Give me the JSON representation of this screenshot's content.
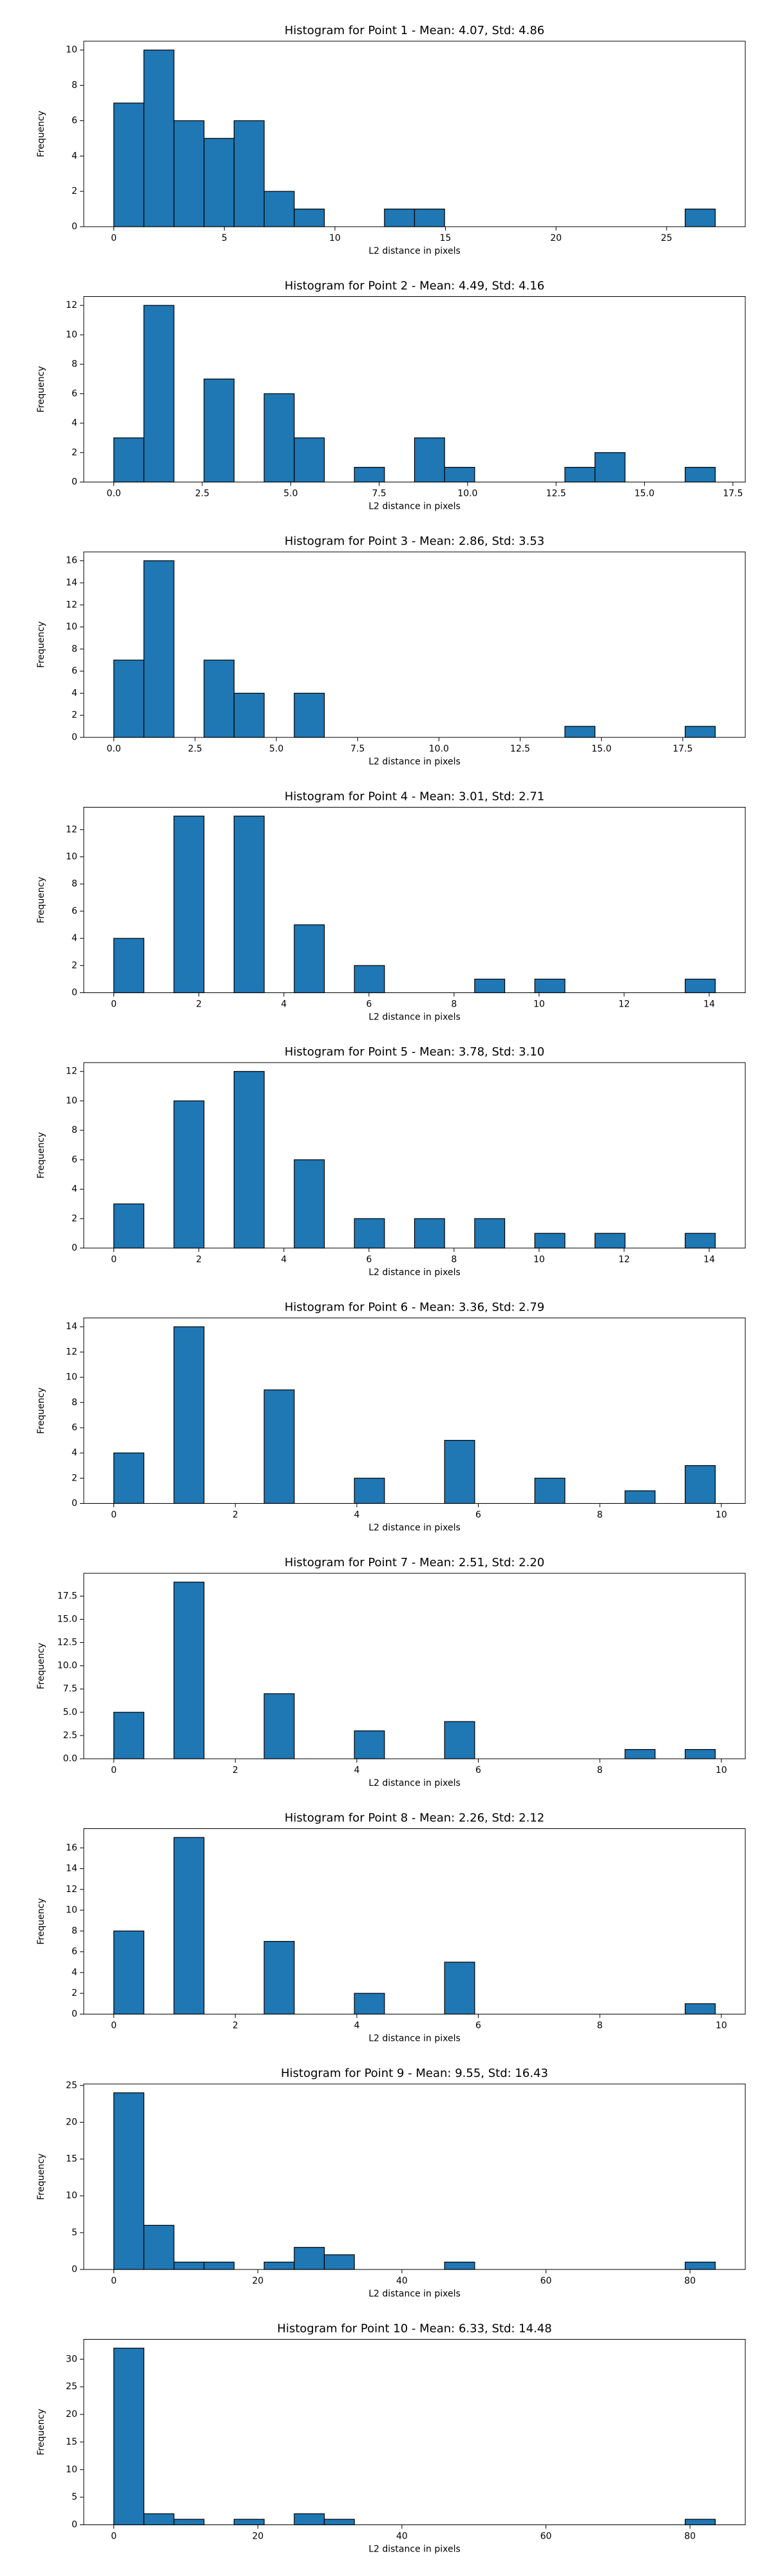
{
  "chart_data": [
    {
      "type": "histogram",
      "title": "Histogram for Point 1 - Mean: 4.07, Std: 4.86",
      "xlabel": "L2 distance in pixels",
      "ylabel": "Frequency",
      "color": "#1f77b4",
      "edgecolor": "#000000",
      "bins": [
        0,
        1.36,
        2.72,
        4.08,
        5.44,
        6.8,
        8.16,
        9.52,
        10.88,
        12.24,
        13.6,
        14.96,
        16.32,
        17.68,
        19.04,
        20.4,
        21.76,
        23.12,
        24.48,
        25.84,
        27.2
      ],
      "values": [
        7,
        10,
        6,
        5,
        6,
        2,
        1,
        0,
        0,
        1,
        1,
        0,
        0,
        0,
        0,
        0,
        0,
        0,
        0,
        1
      ],
      "xlim": [
        -1.36,
        28.56
      ],
      "ylim": [
        0,
        10.5
      ],
      "xticks": [
        0,
        5,
        10,
        15,
        20,
        25
      ],
      "yticks": [
        0,
        2,
        4,
        6,
        8,
        10
      ]
    },
    {
      "type": "histogram",
      "title": "Histogram for Point 2 - Mean: 4.49, Std: 4.16",
      "xlabel": "L2 distance in pixels",
      "ylabel": "Frequency",
      "color": "#1f77b4",
      "edgecolor": "#000000",
      "bins": [
        0,
        0.85,
        1.7,
        2.55,
        3.4,
        4.25,
        5.1,
        5.95,
        6.8,
        7.65,
        8.5,
        9.35,
        10.2,
        11.05,
        11.9,
        12.75,
        13.6,
        14.45,
        15.3,
        16.15,
        17
      ],
      "values": [
        3,
        12,
        0,
        7,
        0,
        6,
        3,
        0,
        1,
        0,
        3,
        1,
        0,
        0,
        0,
        1,
        2,
        0,
        0,
        1
      ],
      "xlim": [
        -0.85,
        17.85
      ],
      "ylim": [
        0,
        12.6
      ],
      "xticks": [
        {
          "value": 0,
          "label": "0.0"
        },
        2.5,
        {
          "value": 5,
          "label": "5.0"
        },
        7.5,
        {
          "value": 10,
          "label": "10.0"
        },
        12.5,
        {
          "value": 15,
          "label": "15.0"
        },
        17.5
      ],
      "yticks": [
        0,
        2,
        4,
        6,
        8,
        10,
        12
      ]
    },
    {
      "type": "histogram",
      "title": "Histogram for Point 3 - Mean: 2.86, Std: 3.53",
      "xlabel": "L2 distance in pixels",
      "ylabel": "Frequency",
      "color": "#1f77b4",
      "edgecolor": "#000000",
      "bins": [
        0,
        0.925,
        1.85,
        2.775,
        3.7,
        4.625,
        5.55,
        6.475,
        7.4,
        8.325,
        9.25,
        10.175,
        11.1,
        12.025,
        12.95,
        13.875,
        14.8,
        15.725,
        16.65,
        17.575,
        18.5
      ],
      "values": [
        7,
        16,
        0,
        7,
        4,
        0,
        4,
        0,
        0,
        0,
        0,
        0,
        0,
        0,
        0,
        1,
        0,
        0,
        0,
        1
      ],
      "xlim": [
        -0.925,
        19.425
      ],
      "ylim": [
        0,
        16.8
      ],
      "xticks": [
        {
          "value": 0,
          "label": "0.0"
        },
        2.5,
        {
          "value": 5,
          "label": "5.0"
        },
        7.5,
        {
          "value": 10,
          "label": "10.0"
        },
        12.5,
        {
          "value": 15,
          "label": "15.0"
        },
        17.5
      ],
      "yticks": [
        0,
        2,
        4,
        6,
        8,
        10,
        12,
        14,
        16
      ]
    },
    {
      "type": "histogram",
      "title": "Histogram for Point 4 - Mean: 3.01, Std: 2.71",
      "xlabel": "L2 distance in pixels",
      "ylabel": "Frequency",
      "color": "#1f77b4",
      "edgecolor": "#000000",
      "bins": [
        0,
        0.707,
        1.414,
        2.121,
        2.828,
        3.536,
        4.243,
        4.95,
        5.657,
        6.364,
        7.071,
        7.778,
        8.485,
        9.192,
        9.899,
        10.607,
        11.314,
        12.021,
        12.728,
        13.435,
        14.142
      ],
      "values": [
        4,
        0,
        13,
        0,
        13,
        0,
        5,
        0,
        2,
        0,
        0,
        0,
        1,
        0,
        1,
        0,
        0,
        0,
        0,
        1
      ],
      "xlim": [
        -0.707,
        14.849
      ],
      "ylim": [
        0,
        13.65
      ],
      "xticks": [
        0,
        2,
        4,
        6,
        8,
        10,
        12,
        14
      ],
      "yticks": [
        0,
        2,
        4,
        6,
        8,
        10,
        12
      ]
    },
    {
      "type": "histogram",
      "title": "Histogram for Point 5 - Mean: 3.78, Std: 3.10",
      "xlabel": "L2 distance in pixels",
      "ylabel": "Frequency",
      "color": "#1f77b4",
      "edgecolor": "#000000",
      "bins": [
        0,
        0.707,
        1.414,
        2.121,
        2.828,
        3.536,
        4.243,
        4.95,
        5.657,
        6.364,
        7.071,
        7.778,
        8.485,
        9.192,
        9.899,
        10.607,
        11.314,
        12.021,
        12.728,
        13.435,
        14.142
      ],
      "values": [
        3,
        0,
        10,
        0,
        12,
        0,
        6,
        0,
        2,
        0,
        2,
        0,
        2,
        0,
        1,
        0,
        1,
        0,
        0,
        1
      ],
      "xlim": [
        -0.707,
        14.849
      ],
      "ylim": [
        0,
        12.6
      ],
      "xticks": [
        0,
        2,
        4,
        6,
        8,
        10,
        12,
        14
      ],
      "yticks": [
        0,
        2,
        4,
        6,
        8,
        10,
        12
      ]
    },
    {
      "type": "histogram",
      "title": "Histogram for Point 6 - Mean: 3.36, Std: 2.79",
      "xlabel": "L2 distance in pixels",
      "ylabel": "Frequency",
      "color": "#1f77b4",
      "edgecolor": "#000000",
      "bins": [
        0,
        0.495,
        0.99,
        1.485,
        1.98,
        2.475,
        2.97,
        3.465,
        3.96,
        4.455,
        4.95,
        5.445,
        5.94,
        6.435,
        6.93,
        7.425,
        7.92,
        8.415,
        8.91,
        9.405,
        9.9
      ],
      "values": [
        4,
        0,
        14,
        0,
        0,
        9,
        0,
        0,
        2,
        0,
        0,
        5,
        0,
        0,
        2,
        0,
        0,
        1,
        0,
        3
      ],
      "xlim": [
        -0.495,
        10.395
      ],
      "ylim": [
        0,
        14.7
      ],
      "xticks": [
        0,
        2,
        4,
        6,
        8,
        10
      ],
      "yticks": [
        0,
        2,
        4,
        6,
        8,
        10,
        12,
        14
      ]
    },
    {
      "type": "histogram",
      "title": "Histogram for Point 7 - Mean: 2.51, Std: 2.20",
      "xlabel": "L2 distance in pixels",
      "ylabel": "Frequency",
      "color": "#1f77b4",
      "edgecolor": "#000000",
      "bins": [
        0,
        0.495,
        0.99,
        1.485,
        1.98,
        2.475,
        2.97,
        3.465,
        3.96,
        4.455,
        4.95,
        5.445,
        5.94,
        6.435,
        6.93,
        7.425,
        7.92,
        8.415,
        8.91,
        9.405,
        9.9
      ],
      "values": [
        5,
        0,
        19,
        0,
        0,
        7,
        0,
        0,
        3,
        0,
        0,
        4,
        0,
        0,
        0,
        0,
        0,
        1,
        0,
        1
      ],
      "xlim": [
        -0.495,
        10.395
      ],
      "ylim": [
        0,
        19.95
      ],
      "xticks": [
        0,
        2,
        4,
        6,
        8,
        10
      ],
      "yticks": [
        {
          "value": 0,
          "label": "0.0"
        },
        2.5,
        {
          "value": 5,
          "label": "5.0"
        },
        7.5,
        {
          "value": 10,
          "label": "10.0"
        },
        12.5,
        {
          "value": 15,
          "label": "15.0"
        },
        17.5
      ]
    },
    {
      "type": "histogram",
      "title": "Histogram for Point 8 - Mean: 2.26, Std: 2.12",
      "xlabel": "L2 distance in pixels",
      "ylabel": "Frequency",
      "color": "#1f77b4",
      "edgecolor": "#000000",
      "bins": [
        0,
        0.495,
        0.99,
        1.485,
        1.98,
        2.475,
        2.97,
        3.465,
        3.96,
        4.455,
        4.95,
        5.445,
        5.94,
        6.435,
        6.93,
        7.425,
        7.92,
        8.415,
        8.91,
        9.405,
        9.9
      ],
      "values": [
        8,
        0,
        17,
        0,
        0,
        7,
        0,
        0,
        2,
        0,
        0,
        5,
        0,
        0,
        0,
        0,
        0,
        0,
        0,
        1
      ],
      "xlim": [
        -0.495,
        10.395
      ],
      "ylim": [
        0,
        17.85
      ],
      "xticks": [
        0,
        2,
        4,
        6,
        8,
        10
      ],
      "yticks": [
        0,
        2,
        4,
        6,
        8,
        10,
        12,
        14,
        16
      ]
    },
    {
      "type": "histogram",
      "title": "Histogram for Point 9 - Mean: 9.55, Std: 16.43",
      "xlabel": "L2 distance in pixels",
      "ylabel": "Frequency",
      "color": "#1f77b4",
      "edgecolor": "#000000",
      "bins": [
        0,
        4.175,
        8.35,
        12.525,
        16.7,
        20.875,
        25.05,
        29.225,
        33.4,
        37.575,
        41.75,
        45.925,
        50.1,
        54.275,
        58.45,
        62.625,
        66.8,
        70.975,
        75.15,
        79.325,
        83.5
      ],
      "values": [
        24,
        6,
        1,
        1,
        0,
        1,
        3,
        2,
        0,
        0,
        0,
        1,
        0,
        0,
        0,
        0,
        0,
        0,
        0,
        1
      ],
      "xlim": [
        -4.175,
        87.675
      ],
      "ylim": [
        0,
        25.2
      ],
      "xticks": [
        0,
        20,
        40,
        60,
        80
      ],
      "yticks": [
        0,
        5,
        10,
        15,
        20,
        25
      ]
    },
    {
      "type": "histogram",
      "title": "Histogram for Point 10 - Mean: 6.33, Std: 14.48",
      "xlabel": "L2 distance in pixels",
      "ylabel": "Frequency",
      "color": "#1f77b4",
      "edgecolor": "#000000",
      "bins": [
        0,
        4.175,
        8.35,
        12.525,
        16.7,
        20.875,
        25.05,
        29.225,
        33.4,
        37.575,
        41.75,
        45.925,
        50.1,
        54.275,
        58.45,
        62.625,
        66.8,
        70.975,
        75.15,
        79.325,
        83.5
      ],
      "values": [
        32,
        2,
        1,
        0,
        1,
        0,
        2,
        1,
        0,
        0,
        0,
        0,
        0,
        0,
        0,
        0,
        0,
        0,
        0,
        1
      ],
      "xlim": [
        -4.175,
        87.675
      ],
      "ylim": [
        0,
        33.6
      ],
      "xticks": [
        0,
        20,
        40,
        60,
        80
      ],
      "yticks": [
        0,
        5,
        10,
        15,
        20,
        25,
        30
      ]
    }
  ]
}
